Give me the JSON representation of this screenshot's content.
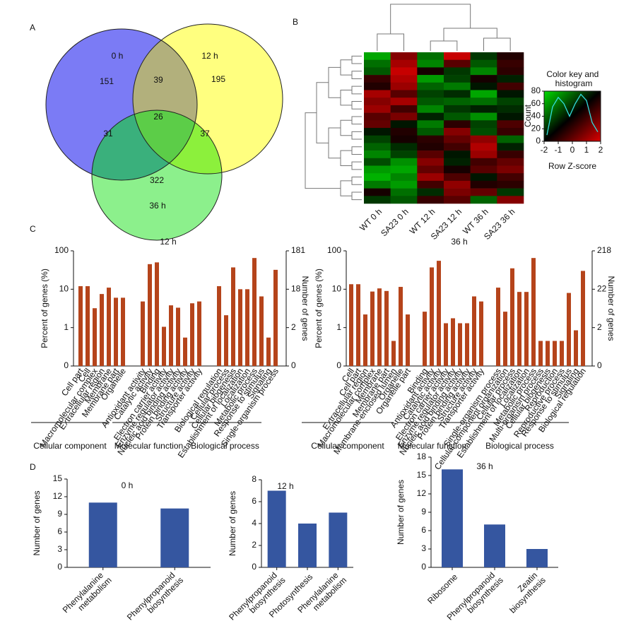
{
  "panels": [
    "A",
    "B",
    "C",
    "D"
  ],
  "chart_data": [
    {
      "type": "venn",
      "sets": [
        "0 h",
        "12 h",
        "36 h"
      ],
      "values": [
        151,
        195,
        322,
        39,
        31,
        37,
        26
      ],
      "colors": [
        "#7b7bf5",
        "#ffff7f",
        "#8cf08c",
        "#b2b07c",
        "#3ab07c",
        "#8cf03c",
        "#5ccd48"
      ]
    },
    {
      "type": "heatmap",
      "columns": [
        "WT 0 h",
        "SA23 0 h",
        "WT 12 h",
        "SA23 12 h",
        "WT 36 h",
        "SA23 36 h"
      ],
      "values": [
        [
          -1.5,
          1.2,
          -1,
          1.8,
          -0.5,
          0.3
        ],
        [
          -1,
          1.5,
          -1.2,
          0.8,
          -0.8,
          0.5
        ],
        [
          -0.8,
          1.8,
          0.2,
          -0.5,
          -1.2,
          0.4
        ],
        [
          0.5,
          1.6,
          -1.4,
          -0.6,
          0.2,
          -0.3
        ],
        [
          0.3,
          1.4,
          -0.9,
          -1.1,
          -0.2,
          0.6
        ],
        [
          1.5,
          0.8,
          -0.6,
          -0.4,
          -1.5,
          -0.2
        ],
        [
          1.2,
          1.5,
          -0.8,
          -0.9,
          -1.0,
          -0.6
        ],
        [
          1.4,
          0.6,
          -1.2,
          -0.5,
          -0.3,
          -0.4
        ],
        [
          0.8,
          1.1,
          -0.3,
          -0.8,
          -1.3,
          -0.2
        ],
        [
          0.9,
          -0.2,
          -1.1,
          0.4,
          -0.6,
          0.7
        ],
        [
          -0.2,
          0.3,
          -0.8,
          1.2,
          -0.7,
          0.5
        ],
        [
          -0.6,
          0.2,
          0.4,
          0.9,
          1.3,
          -0.9
        ],
        [
          -0.9,
          -0.4,
          0.3,
          0.6,
          1.6,
          -0.3
        ],
        [
          -1.2,
          -0.6,
          0.8,
          -0.2,
          1.4,
          0.5
        ],
        [
          -0.7,
          -1.3,
          1.2,
          -0.3,
          0.6,
          0.9
        ],
        [
          -1.4,
          -1.5,
          0.9,
          0.2,
          0.8,
          1.1
        ],
        [
          -1.6,
          -1.2,
          1.4,
          0.7,
          -0.2,
          0.6
        ],
        [
          -1.1,
          -1.4,
          0.6,
          1.3,
          0.3,
          0.4
        ],
        [
          0.2,
          -1.0,
          -0.4,
          1.1,
          0.9,
          -0.5
        ],
        [
          -0.5,
          -0.8,
          0.5,
          0.8,
          -0.9,
          1.2
        ]
      ],
      "colorkey": {
        "title": "Color key and histogram",
        "xlabel": "Row Z-score",
        "ylabel": "Count",
        "xlim": [
          -2,
          2
        ],
        "xticks": [
          -2,
          -1,
          0,
          1,
          2
        ],
        "ylim": [
          0,
          80
        ],
        "yticks": [
          0,
          20,
          40,
          60,
          80
        ],
        "colors": [
          "#00dd00",
          "#000000",
          "#dd0000"
        ],
        "histogram": {
          "color": "#33dddd",
          "x": [
            -1.8,
            -1.4,
            -1,
            -0.6,
            -0.2,
            0.2,
            0.6,
            1,
            1.4,
            1.8
          ],
          "values": [
            10,
            55,
            70,
            60,
            40,
            60,
            75,
            65,
            30,
            15
          ]
        }
      }
    },
    {
      "type": "bar",
      "title": "12 h",
      "log": true,
      "ylabel": "Percent of genes (%)",
      "y2label": "Number of genes",
      "ylim": [
        0.1,
        100
      ],
      "yticks": [
        {
          "value": 0.1,
          "label": "0"
        },
        1,
        10,
        100
      ],
      "y2lim": [
        0.181,
        181
      ],
      "y2ticks": [
        {
          "value": 0.181,
          "label": "0"
        },
        {
          "value": 1.81,
          "label": "2"
        },
        {
          "value": 18.1,
          "label": "18"
        },
        181
      ],
      "color": "#b5441b",
      "groups": [
        {
          "name": "Cellular component",
          "categories": [
            "Cell part",
            "Cell",
            "Macromolecular complex",
            "Extracellular region",
            "Membrane",
            "Membrane part",
            "Organelle"
          ],
          "values": [
            12,
            12,
            3.2,
            7.5,
            11,
            6,
            6
          ]
        },
        {
          "name": "Molecular function",
          "categories": [
            "Antioxidant activity",
            "Catalytic activity",
            "Binding",
            "Electron carrier activity",
            "Enzyme regulator activity",
            "Nucleic acid binding activity",
            "Protein binding activity",
            "Structure activity",
            "Transporter activity"
          ],
          "values": [
            4.8,
            45,
            50,
            1.05,
            3.8,
            3.3,
            0.55,
            4.3,
            4.8
          ]
        },
        {
          "name": "Biological process",
          "categories": [
            "Biological regulation",
            "Cellular process",
            "Cellular biogenesis",
            "Establishment of localization",
            "Localization",
            "Metabolic process",
            "Response to stimulus",
            "Signaling",
            "Single-organism process"
          ],
          "values": [
            12,
            2.1,
            37,
            10,
            10,
            65,
            6.5,
            0.55,
            32
          ]
        }
      ]
    },
    {
      "type": "bar",
      "title": "36 h",
      "log": true,
      "ylabel": "Percent of genes (%)",
      "y2label": "Number of genes",
      "ylim": [
        0.1,
        100
      ],
      "yticks": [
        {
          "value": 0.1,
          "label": "0"
        },
        1,
        10,
        100
      ],
      "y2lim": [
        0.218,
        218
      ],
      "y2ticks": [
        {
          "value": 0.218,
          "label": "0"
        },
        {
          "value": 2.18,
          "label": "2"
        },
        {
          "value": 21.8,
          "label": "22"
        },
        218
      ],
      "color": "#b5441b",
      "groups": [
        {
          "name": "Cellular component",
          "categories": [
            "Cell",
            "Cell part",
            "Extracellular region",
            "Macromolecular complex",
            "Membrane",
            "Membrane part",
            "Membrane-enclosed lumen",
            "Organelle",
            "Organelle part"
          ],
          "values": [
            13.5,
            13.5,
            2.2,
            8.7,
            10.5,
            9,
            0.45,
            11.5,
            2.2
          ]
        },
        {
          "name": "Molecular function",
          "categories": [
            "Binding",
            "Antioxidant activity",
            "Catalytic activity",
            "Electron carrier activity",
            "Enzyme regulator activity",
            "Nucleic acid binding activity",
            "Protein binding activity",
            "Structure activity",
            "Transporter activity"
          ],
          "values": [
            2.6,
            37,
            55,
            1.3,
            1.75,
            1.3,
            1.3,
            6.5,
            4.8
          ]
        },
        {
          "name": "Biological process",
          "categories": [
            "Single-organism process",
            "Cellular component organization",
            "Cellular process",
            "Establishment of localization",
            "Localization",
            "Metabolic process",
            "Multi-organism process",
            "Cellular biogenesis",
            "Reproduction",
            "Reproductive process",
            "Response to stimulus",
            "Signaling",
            "Biological regulation"
          ],
          "values": [
            11,
            2.6,
            35,
            8.5,
            8.5,
            65,
            0.45,
            0.45,
            0.45,
            0.45,
            8,
            0.85,
            30
          ]
        }
      ]
    },
    {
      "type": "bar",
      "title": "0 h",
      "ylabel": "Number of genes",
      "color": "#3556a0",
      "categories": [
        "Phenylalanine metabolism",
        "Phenylpropanoid biosynthesis"
      ],
      "values": [
        11,
        10
      ],
      "ylim": [
        0,
        15
      ],
      "yticks": [
        0,
        3,
        6,
        9,
        12,
        15
      ]
    },
    {
      "type": "bar",
      "title": "12 h",
      "ylabel": "Number of genes",
      "color": "#3556a0",
      "categories": [
        "Phenylpropanoid biosynthesis",
        "Photosynthesis",
        "Phenylalanine metabolism"
      ],
      "values": [
        7,
        4,
        5
      ],
      "ylim": [
        0,
        8
      ],
      "yticks": [
        0,
        2,
        4,
        6,
        8
      ]
    },
    {
      "type": "bar",
      "title": "36 h",
      "ylabel": "Number of genes",
      "color": "#3556a0",
      "categories": [
        "Ribosome",
        "Phenylpropanoid biosynthesis",
        "Zeatin biosynthesis"
      ],
      "values": [
        16,
        7,
        3
      ],
      "ylim": [
        0,
        18
      ],
      "yticks": [
        0,
        3,
        6,
        9,
        12,
        15,
        18
      ]
    }
  ]
}
